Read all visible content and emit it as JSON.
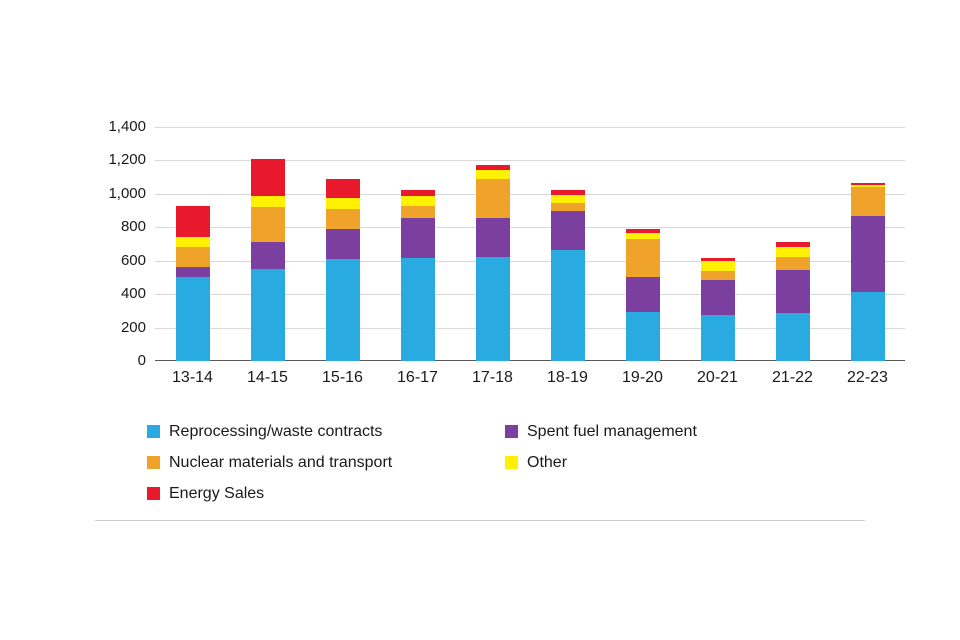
{
  "chart_data": {
    "type": "bar",
    "stacked": true,
    "title": "",
    "xlabel": "",
    "ylabel": "",
    "categories": [
      "13-14",
      "14-15",
      "15-16",
      "16-17",
      "17-18",
      "18-19",
      "19-20",
      "20-21",
      "21-22",
      "22-23"
    ],
    "series": [
      {
        "name": "Reprocessing/waste contracts",
        "color": "#29abe2",
        "values": [
          500,
          550,
          610,
          615,
          620,
          665,
          295,
          275,
          290,
          415
        ]
      },
      {
        "name": "Spent fuel management",
        "color": "#7b3fa0",
        "values": [
          60,
          165,
          180,
          240,
          235,
          230,
          210,
          210,
          255,
          450
        ]
      },
      {
        "name": "Nuclear materials and transport",
        "color": "#efa32b",
        "values": [
          120,
          205,
          120,
          75,
          235,
          50,
          225,
          55,
          75,
          175
        ]
      },
      {
        "name": "Other",
        "color": "#fff101",
        "values": [
          60,
          70,
          65,
          55,
          55,
          50,
          35,
          60,
          60,
          15
        ]
      },
      {
        "name": "Energy Sales",
        "color": "#e8192c",
        "values": [
          190,
          220,
          115,
          40,
          30,
          30,
          25,
          15,
          30,
          10
        ]
      }
    ],
    "ylim": [
      0,
      1400
    ],
    "yticks": [
      {
        "value": 0,
        "label": "0"
      },
      {
        "value": 200,
        "label": "200"
      },
      {
        "value": 400,
        "label": "400"
      },
      {
        "value": 600,
        "label": "600"
      },
      {
        "value": 800,
        "label": "800"
      },
      {
        "value": 1000,
        "label": "1,000"
      },
      {
        "value": 1200,
        "label": "1,200"
      },
      {
        "value": 1400,
        "label": "1,400"
      }
    ],
    "grid": "horizontal",
    "legend_position": "bottom",
    "legend_columns": 2
  },
  "colors": {
    "gridline": "#d9d9d9",
    "axis_line": "#595959",
    "text": "#1a1a1a",
    "divider": "#cccccc"
  }
}
